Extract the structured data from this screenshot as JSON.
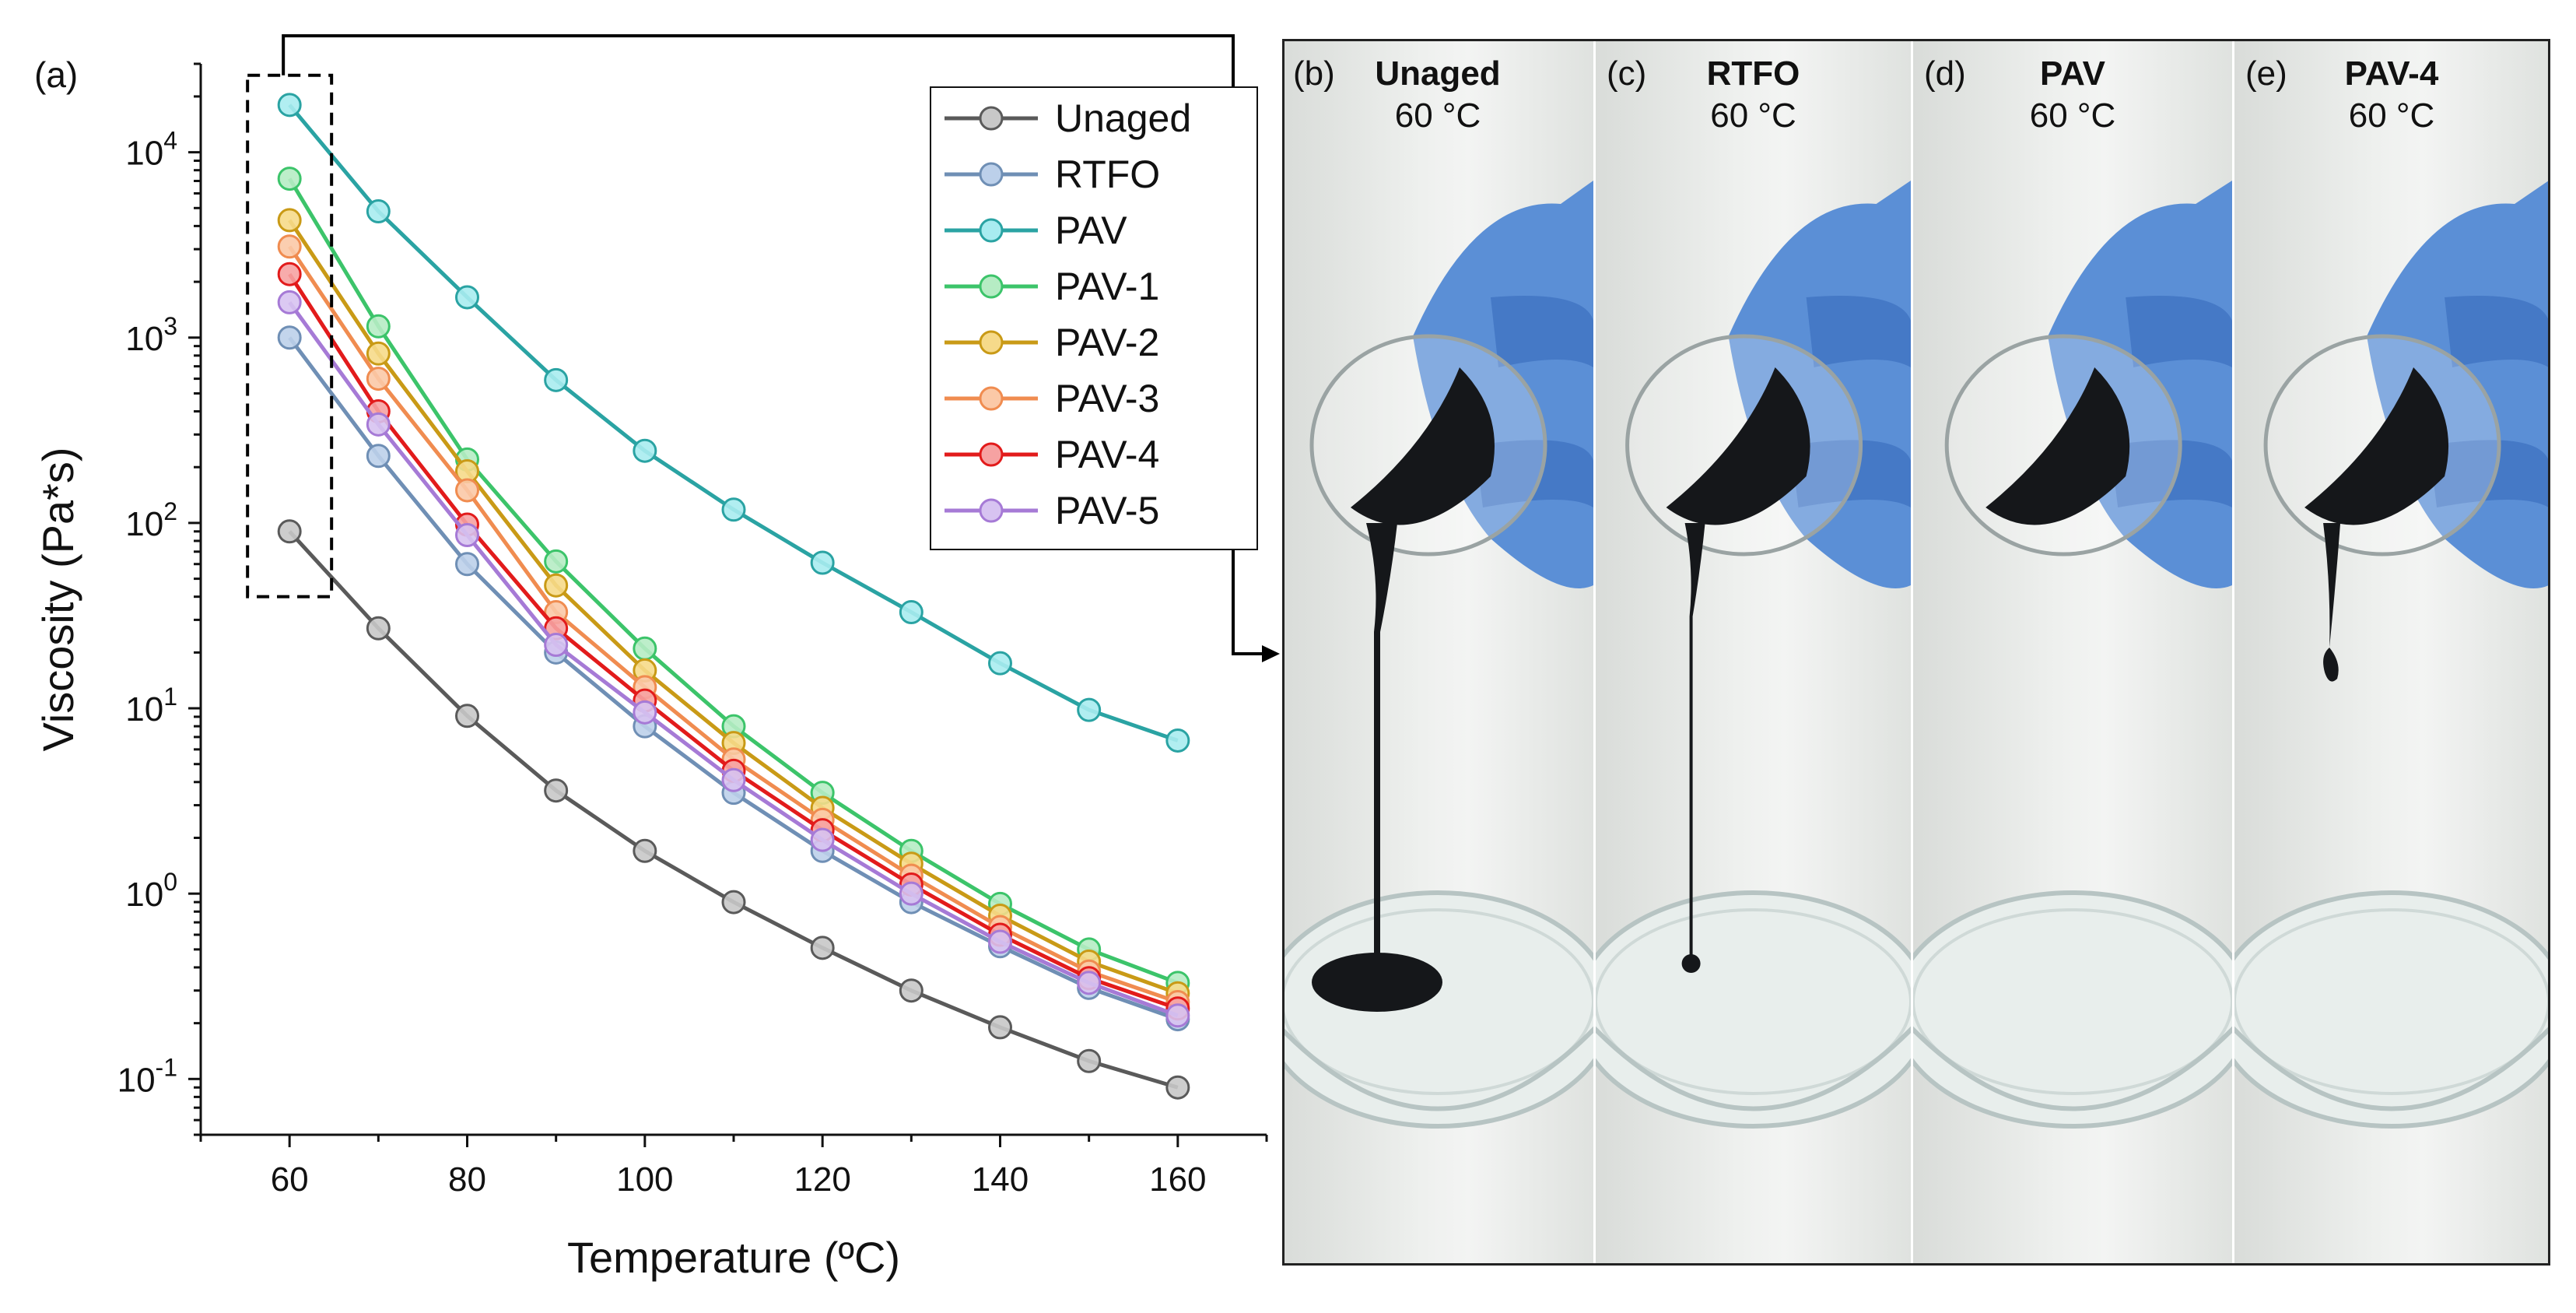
{
  "chart_data": {
    "type": "line",
    "panel_label": "(a)",
    "xlabel": "Temperature (ºC)",
    "ylabel": "Viscosity (Pa*s)",
    "yscale": "log",
    "xlim": [
      50,
      170
    ],
    "ylim": [
      0.05,
      30000
    ],
    "xticks": [
      60,
      80,
      100,
      120,
      140,
      160
    ],
    "ytick_labels": [
      {
        "value": 0.1,
        "mant": "10",
        "exp": "-1"
      },
      {
        "value": 1,
        "mant": "10",
        "exp": "0"
      },
      {
        "value": 10,
        "mant": "10",
        "exp": "1"
      },
      {
        "value": 100,
        "mant": "10",
        "exp": "2"
      },
      {
        "value": 1000,
        "mant": "10",
        "exp": "3"
      },
      {
        "value": 10000,
        "mant": "10",
        "exp": "4"
      }
    ],
    "legend_position": "top-right",
    "x": [
      60,
      70,
      80,
      90,
      100,
      110,
      120,
      130,
      140,
      150,
      160
    ],
    "series": [
      {
        "name": "Unaged",
        "line_color": "#5a5a5a",
        "fill_color": "#c8c8c8",
        "values": [
          90,
          27,
          9.1,
          3.6,
          1.7,
          0.9,
          0.51,
          0.3,
          0.19,
          0.125,
          0.09
        ]
      },
      {
        "name": "RTFO",
        "line_color": "#6f8fb5",
        "fill_color": "#bcd0ea",
        "values": [
          1000,
          230,
          60,
          20,
          8,
          3.5,
          1.7,
          0.9,
          0.52,
          0.31,
          0.21
        ]
      },
      {
        "name": "PAV",
        "line_color": "#2aa3a3",
        "fill_color": "#a8ecf0",
        "values": [
          18000,
          4800,
          1650,
          590,
          245,
          118,
          61,
          33,
          17.5,
          9.8,
          6.7
        ]
      },
      {
        "name": "PAV-1",
        "line_color": "#3cc46a",
        "fill_color": "#b6ecc4",
        "values": [
          7200,
          1150,
          220,
          62,
          21,
          8,
          3.5,
          1.7,
          0.88,
          0.5,
          0.33
        ]
      },
      {
        "name": "PAV-2",
        "line_color": "#c99a16",
        "fill_color": "#f6da8a",
        "values": [
          4300,
          820,
          190,
          46,
          16,
          6.5,
          2.9,
          1.45,
          0.76,
          0.43,
          0.29
        ]
      },
      {
        "name": "PAV-3",
        "line_color": "#f08c50",
        "fill_color": "#fbc9a7",
        "values": [
          3100,
          600,
          150,
          33,
          13,
          5.3,
          2.5,
          1.25,
          0.66,
          0.38,
          0.26
        ]
      },
      {
        "name": "PAV-4",
        "line_color": "#e21b1b",
        "fill_color": "#f6a2a2",
        "values": [
          2200,
          400,
          98,
          27,
          11,
          4.6,
          2.2,
          1.12,
          0.6,
          0.35,
          0.24
        ]
      },
      {
        "name": "PAV-5",
        "line_color": "#a67ad6",
        "fill_color": "#d7c3f1",
        "values": [
          1550,
          340,
          86,
          22,
          9.5,
          4.1,
          1.95,
          1.0,
          0.55,
          0.33,
          0.22
        ]
      }
    ]
  },
  "photo_panels": [
    {
      "tag": "(b)",
      "title": "Unaged",
      "temp": "60 °C"
    },
    {
      "tag": "(c)",
      "title": "RTFO",
      "temp": "60 °C"
    },
    {
      "tag": "(d)",
      "title": "PAV",
      "temp": "60 °C"
    },
    {
      "tag": "(e)",
      "title": "PAV-4",
      "temp": "60 °C"
    }
  ],
  "colors": {
    "glove": "#5b8fd6",
    "glove_shadow": "#3c6fbf",
    "asphalt": "#15171a",
    "dish_rim": "#b7c4c3",
    "callout": "#000000"
  }
}
